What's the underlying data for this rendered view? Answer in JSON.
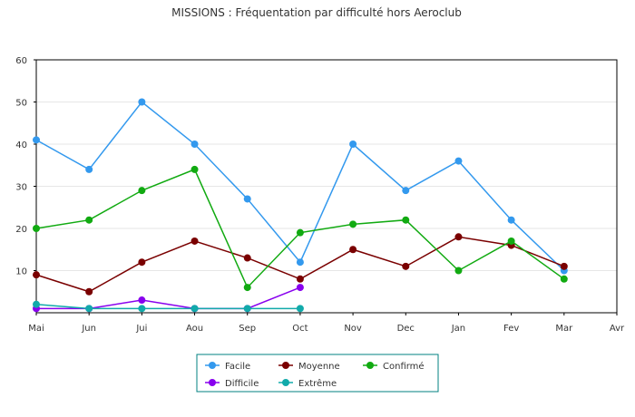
{
  "chart_data": {
    "type": "line",
    "title": "MISSIONS : Fréquentation par difficulté hors Aeroclub",
    "categories": [
      "Mai",
      "Jun",
      "Jui",
      "Aou",
      "Sep",
      "Oct",
      "Nov",
      "Dec",
      "Jan",
      "Fev",
      "Mar",
      "Avr"
    ],
    "ylim": [
      0,
      60
    ],
    "yticks": [
      10,
      20,
      30,
      40,
      50,
      60
    ],
    "grid": "horizontal",
    "legend_position": "bottom",
    "series": [
      {
        "name": "Facile",
        "color": "#3399ee",
        "values": [
          41,
          34,
          50,
          40,
          27,
          12,
          40,
          29,
          36,
          22,
          10,
          null
        ]
      },
      {
        "name": "Moyenne",
        "color": "#7a0000",
        "values": [
          9,
          5,
          12,
          17,
          13,
          8,
          15,
          11,
          18,
          16,
          11,
          null
        ]
      },
      {
        "name": "Confirmé",
        "color": "#11aa11",
        "values": [
          20,
          22,
          29,
          34,
          6,
          19,
          21,
          22,
          10,
          17,
          8,
          null
        ]
      },
      {
        "name": "Difficile",
        "color": "#8800ee",
        "values": [
          1,
          1,
          3,
          1,
          1,
          6,
          null,
          null,
          null,
          null,
          null,
          null
        ]
      },
      {
        "name": "Extrême",
        "color": "#11aaaa",
        "values": [
          2,
          1,
          1,
          1,
          1,
          1,
          null,
          null,
          null,
          null,
          null,
          null
        ]
      }
    ]
  }
}
